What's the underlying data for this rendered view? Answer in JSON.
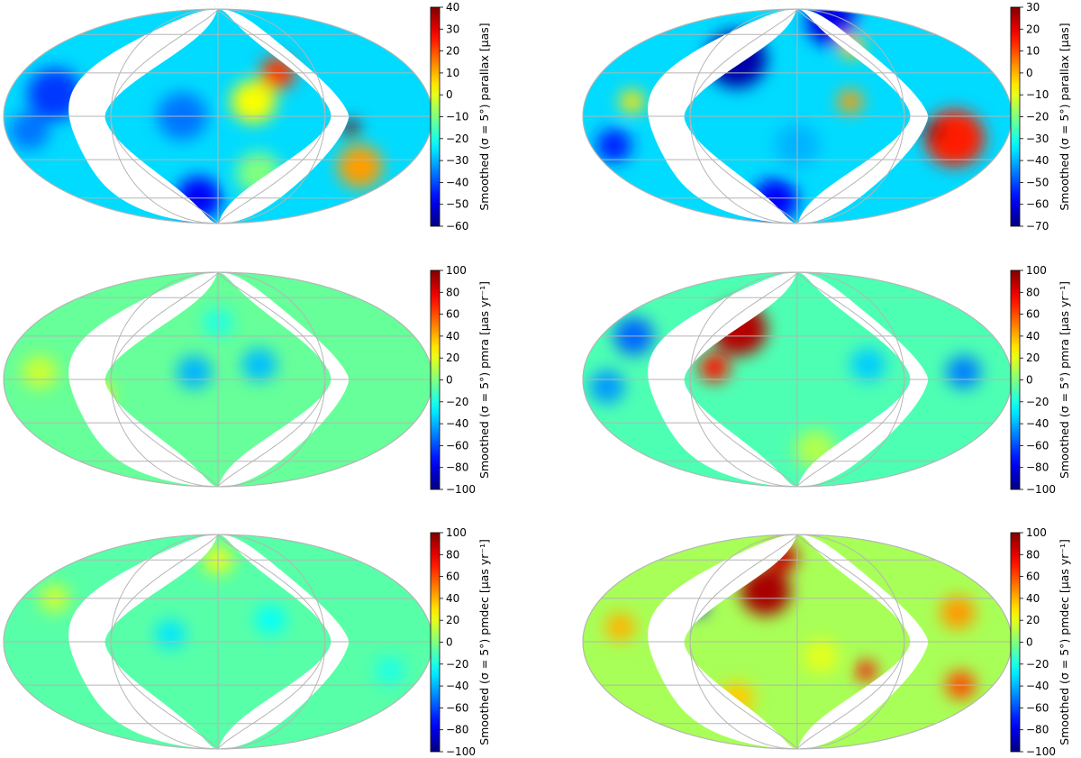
{
  "chart_data": [
    {
      "type": "heatmap",
      "projection": "mollweide",
      "colormap": "jet",
      "panel": "row1-left",
      "colorbar_label": "Smoothed (σ = 5°) parallax [μas]",
      "clim": [
        -60,
        40
      ],
      "ticks": [
        40,
        30,
        20,
        10,
        0,
        -10,
        -20,
        -30,
        -40,
        -50,
        -60
      ],
      "tick_labels": [
        "40",
        "30",
        "20",
        "10",
        "0",
        "−10",
        "−20",
        "−30",
        "−40",
        "−50",
        "−60"
      ],
      "grid": true,
      "features": [
        {
          "kind": "blob",
          "lon": -140,
          "lat": 15,
          "r": 22,
          "value": -42
        },
        {
          "kind": "blob",
          "lon": -160,
          "lat": -10,
          "r": 16,
          "value": -36
        },
        {
          "kind": "blob",
          "lon": -30,
          "lat": 0,
          "r": 20,
          "value": -36
        },
        {
          "kind": "blob",
          "lon": -25,
          "lat": -60,
          "r": 18,
          "value": -48
        },
        {
          "kind": "blob",
          "lon": 30,
          "lat": 10,
          "r": 18,
          "value": 2
        },
        {
          "kind": "blob",
          "lon": 55,
          "lat": 30,
          "r": 14,
          "value": 22
        },
        {
          "kind": "blob",
          "lon": 112,
          "lat": -8,
          "r": 7,
          "value": 40
        },
        {
          "kind": "blob",
          "lon": 135,
          "lat": -35,
          "r": 18,
          "value": 12
        },
        {
          "kind": "blob",
          "lon": 40,
          "lat": -40,
          "r": 18,
          "value": -10
        }
      ],
      "background_value": -26
    },
    {
      "type": "heatmap",
      "projection": "mollweide",
      "colormap": "jet",
      "panel": "row1-right",
      "colorbar_label": "Smoothed (σ = 5°) parallax [μas]",
      "clim": [
        -70,
        30
      ],
      "ticks": [
        30,
        20,
        10,
        0,
        -10,
        -20,
        -30,
        -40,
        -50,
        -60,
        -70
      ],
      "tick_labels": [
        "30",
        "20",
        "10",
        "0",
        "−10",
        "−20",
        "−30",
        "−40",
        "−50",
        "−60",
        "−70"
      ],
      "grid": true,
      "features": [
        {
          "kind": "blob",
          "lon": -60,
          "lat": 40,
          "r": 24,
          "value": -66
        },
        {
          "kind": "blob",
          "lon": 60,
          "lat": 72,
          "r": 20,
          "value": -60
        },
        {
          "kind": "blob",
          "lon": -160,
          "lat": -20,
          "r": 14,
          "value": -55
        },
        {
          "kind": "blob",
          "lon": -140,
          "lat": 10,
          "r": 10,
          "value": -5
        },
        {
          "kind": "blob",
          "lon": 135,
          "lat": -15,
          "r": 24,
          "value": 15
        },
        {
          "kind": "blob",
          "lon": 115,
          "lat": -10,
          "r": 7,
          "value": 30
        },
        {
          "kind": "blob",
          "lon": -30,
          "lat": -62,
          "r": 18,
          "value": -58
        },
        {
          "kind": "blob",
          "lon": 45,
          "lat": 10,
          "r": 10,
          "value": 2
        },
        {
          "kind": "blob",
          "lon": 60,
          "lat": 50,
          "r": 10,
          "value": -2
        },
        {
          "kind": "blob",
          "lon": 0,
          "lat": -20,
          "r": 18,
          "value": -40
        }
      ],
      "background_value": -36
    },
    {
      "type": "heatmap",
      "projection": "mollweide",
      "colormap": "jet",
      "panel": "row2-left",
      "colorbar_label": "Smoothed (σ = 5°) pmra [μas yr⁻¹]",
      "clim": [
        -100,
        100
      ],
      "ticks": [
        100,
        80,
        60,
        40,
        20,
        0,
        -20,
        -40,
        -60,
        -80,
        -100
      ],
      "tick_labels": [
        "100",
        "80",
        "60",
        "40",
        "20",
        "0",
        "−20",
        "−40",
        "−60",
        "−80",
        "−100"
      ],
      "grid": true,
      "features": [
        {
          "kind": "blob",
          "lon": -20,
          "lat": 5,
          "r": 14,
          "value": -40
        },
        {
          "kind": "blob",
          "lon": 35,
          "lat": 10,
          "r": 14,
          "value": -38
        },
        {
          "kind": "blob",
          "lon": -150,
          "lat": 5,
          "r": 14,
          "value": 15
        },
        {
          "kind": "blob",
          "lon": -100,
          "lat": -10,
          "r": 10,
          "value": 22
        },
        {
          "kind": "blob",
          "lon": 0,
          "lat": 40,
          "r": 12,
          "value": -20
        }
      ],
      "background_value": -5
    },
    {
      "type": "heatmap",
      "projection": "mollweide",
      "colormap": "jet",
      "panel": "row2-right",
      "colorbar_label": "Smoothed (σ = 5°) pmra [μas yr⁻¹]",
      "clim": [
        -100,
        100
      ],
      "ticks": [
        100,
        80,
        60,
        40,
        20,
        0,
        -20,
        -40,
        -60,
        -80,
        -100
      ],
      "tick_labels": [
        "100",
        "80",
        "60",
        "40",
        "20",
        "0",
        "−20",
        "−40",
        "−60",
        "−80",
        "−100"
      ],
      "grid": true,
      "features": [
        {
          "kind": "blob",
          "lon": -55,
          "lat": 35,
          "r": 22,
          "value": 90
        },
        {
          "kind": "blob",
          "lon": -70,
          "lat": 8,
          "r": 12,
          "value": 72
        },
        {
          "kind": "blob",
          "lon": -150,
          "lat": 30,
          "r": 16,
          "value": -55
        },
        {
          "kind": "blob",
          "lon": -160,
          "lat": -5,
          "r": 14,
          "value": -45
        },
        {
          "kind": "blob",
          "lon": 60,
          "lat": 10,
          "r": 14,
          "value": -35
        },
        {
          "kind": "blob",
          "lon": 140,
          "lat": 5,
          "r": 14,
          "value": -50
        },
        {
          "kind": "blob",
          "lon": 20,
          "lat": -50,
          "r": 16,
          "value": 10
        }
      ],
      "background_value": -10
    },
    {
      "type": "heatmap",
      "projection": "mollweide",
      "colormap": "jet",
      "panel": "row3-left",
      "colorbar_label": "Smoothed (σ = 5°) pmdec [μas yr⁻¹]",
      "clim": [
        -100,
        100
      ],
      "ticks": [
        100,
        80,
        60,
        40,
        20,
        0,
        -20,
        -40,
        -60,
        -80,
        -100
      ],
      "tick_labels": [
        "100",
        "80",
        "60",
        "40",
        "20",
        "0",
        "−20",
        "−40",
        "−60",
        "−80",
        "−100"
      ],
      "grid": true,
      "features": [
        {
          "kind": "blob",
          "lon": -40,
          "lat": 5,
          "r": 12,
          "value": -30
        },
        {
          "kind": "blob",
          "lon": 45,
          "lat": 15,
          "r": 12,
          "value": -25
        },
        {
          "kind": "blob",
          "lon": 0,
          "lat": 60,
          "r": 12,
          "value": 20
        },
        {
          "kind": "blob",
          "lon": -150,
          "lat": 30,
          "r": 12,
          "value": 15
        },
        {
          "kind": "blob",
          "lon": 150,
          "lat": -20,
          "r": 12,
          "value": -20
        }
      ],
      "background_value": -8
    },
    {
      "type": "heatmap",
      "projection": "mollweide",
      "colormap": "jet",
      "panel": "row3-right",
      "colorbar_label": "Smoothed (σ = 5°) pmdec [μas yr⁻¹]",
      "clim": [
        -100,
        100
      ],
      "ticks": [
        100,
        80,
        60,
        40,
        20,
        0,
        -20,
        -40,
        -60,
        -80,
        -100
      ],
      "tick_labels": [
        "100",
        "80",
        "60",
        "40",
        "20",
        "0",
        "−20",
        "−40",
        "−60",
        "−80",
        "−100"
      ],
      "grid": true,
      "features": [
        {
          "kind": "blob",
          "lon": -30,
          "lat": 35,
          "r": 20,
          "value": 92
        },
        {
          "kind": "blob",
          "lon": -20,
          "lat": 62,
          "r": 12,
          "value": 85
        },
        {
          "kind": "blob",
          "lon": -90,
          "lat": 25,
          "r": 8,
          "value": -80
        },
        {
          "kind": "blob",
          "lon": -150,
          "lat": 10,
          "r": 12,
          "value": 40
        },
        {
          "kind": "blob",
          "lon": 140,
          "lat": 20,
          "r": 14,
          "value": 45
        },
        {
          "kind": "blob",
          "lon": 150,
          "lat": -30,
          "r": 12,
          "value": 60
        },
        {
          "kind": "blob",
          "lon": 60,
          "lat": -20,
          "r": 8,
          "value": 75
        },
        {
          "kind": "blob",
          "lon": -60,
          "lat": -40,
          "r": 14,
          "value": 35
        },
        {
          "kind": "blob",
          "lon": 20,
          "lat": -10,
          "r": 14,
          "value": 20
        }
      ],
      "background_value": 8
    }
  ]
}
